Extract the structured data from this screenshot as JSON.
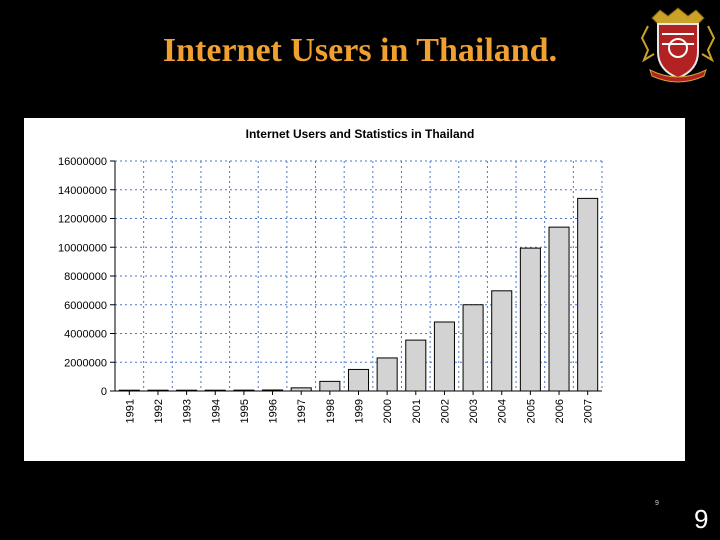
{
  "slide": {
    "title": "Internet Users in Thailand.",
    "small_number": "9",
    "page_number": "9",
    "title_color": "#f0a030"
  },
  "chart_data": {
    "type": "bar",
    "title": "Internet Users and Statistics in Thailand",
    "xlabel": "",
    "ylabel": "",
    "categories": [
      "1991",
      "1992",
      "1993",
      "1994",
      "1995",
      "1996",
      "1997",
      "1998",
      "1999",
      "2000",
      "2001",
      "2002",
      "2003",
      "2004",
      "2005",
      "2006",
      "2007"
    ],
    "values": [
      30,
      200,
      1000,
      10000,
      60000,
      70000,
      220000,
      670000,
      1500000,
      2300000,
      3540000,
      4800000,
      6000000,
      6970000,
      9940000,
      11400000,
      13400000
    ],
    "ylim": [
      0,
      16000000
    ],
    "yticks": [
      "0",
      "2000000",
      "4000000",
      "6000000",
      "8000000",
      "10000000",
      "12000000",
      "14000000",
      "16000000"
    ],
    "grid": true,
    "bar_color": "#d3d3d3",
    "bar_edge_color": "#000000",
    "grid_color": "#4a78c8"
  }
}
